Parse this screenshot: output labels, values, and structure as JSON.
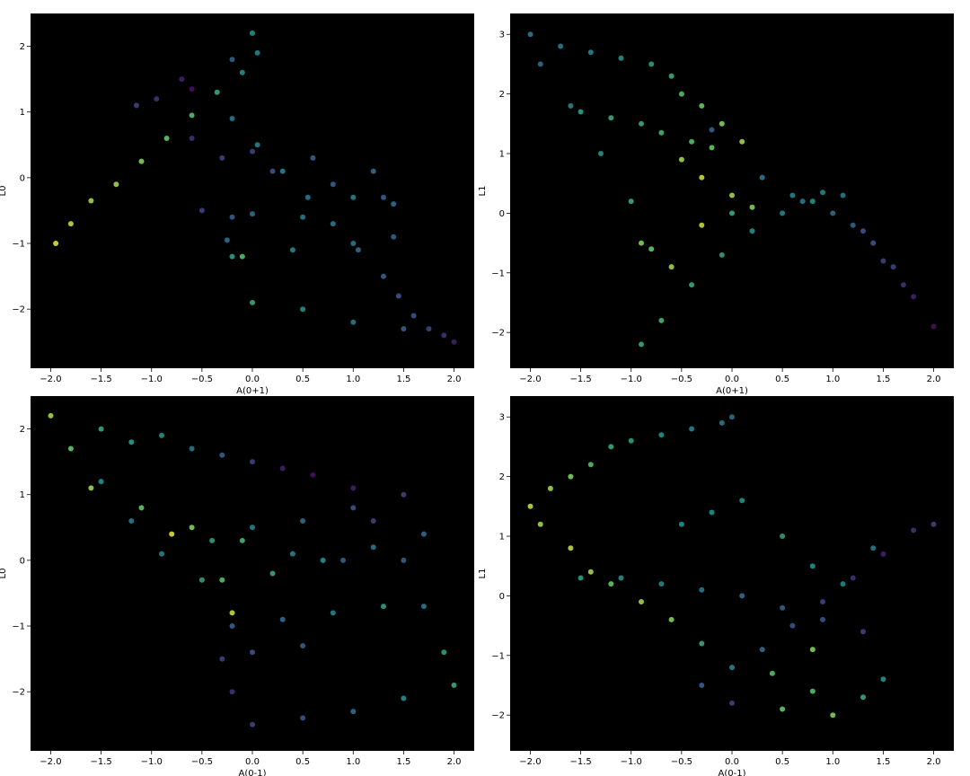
{
  "chart_data": [
    {
      "type": "scatter",
      "xlabel": "A(0+1)",
      "ylabel": "L0",
      "xlim": [
        -2.2,
        2.2
      ],
      "ylim": [
        -2.9,
        2.5
      ],
      "xticks": [
        -2.0,
        -1.5,
        -1.0,
        -0.5,
        0.0,
        0.5,
        1.0,
        1.5,
        2.0
      ],
      "xtick_labels": [
        "−2.0",
        "−1.5",
        "−1.0",
        "−0.5",
        "0.0",
        "0.5",
        "1.0",
        "1.5",
        "2.0"
      ],
      "yticks": [
        2,
        1,
        0,
        -1,
        -2
      ],
      "ytick_labels": [
        "2",
        "1",
        "0",
        "−1",
        "−2"
      ],
      "background": "#000000",
      "colormap": "viridis",
      "grid": false,
      "x": [
        -1.95,
        -1.8,
        -1.6,
        -1.35,
        -1.1,
        -0.85,
        -0.6,
        -0.35,
        -0.1,
        0.05,
        0.0,
        -0.2,
        -0.6,
        -0.7,
        -0.95,
        -1.15,
        -0.2,
        0.05,
        0.3,
        0.55,
        0.8,
        1.05,
        1.3,
        1.45,
        1.6,
        1.75,
        1.9,
        2.0,
        1.5,
        1.0,
        0.5,
        0.0,
        -0.1,
        -0.2,
        -0.25,
        -0.5,
        0.0,
        0.5,
        1.0,
        1.4,
        -0.2,
        0.4,
        1.0,
        1.4,
        -0.3,
        0.2,
        0.8,
        1.3,
        -0.6,
        0.0,
        0.6,
        1.2
      ],
      "y": [
        -1.0,
        -0.7,
        -0.35,
        -0.1,
        0.25,
        0.6,
        0.95,
        1.3,
        1.6,
        1.9,
        2.2,
        1.8,
        1.35,
        1.5,
        1.2,
        1.1,
        0.9,
        0.5,
        0.1,
        -0.3,
        -0.7,
        -1.1,
        -1.5,
        -1.8,
        -2.1,
        -2.3,
        -2.4,
        -2.5,
        -2.3,
        -2.2,
        -2.0,
        -1.9,
        -1.2,
        -0.6,
        -0.95,
        -0.5,
        -0.55,
        -0.6,
        -0.3,
        -0.4,
        -1.2,
        -1.1,
        -1.0,
        -0.9,
        0.3,
        0.1,
        -0.1,
        -0.3,
        0.6,
        0.4,
        0.3,
        0.1
      ],
      "c": [
        0.95,
        0.9,
        0.85,
        0.85,
        0.8,
        0.75,
        0.7,
        0.6,
        0.5,
        0.45,
        0.5,
        0.3,
        0.05,
        0.1,
        0.15,
        0.2,
        0.4,
        0.45,
        0.45,
        0.4,
        0.4,
        0.35,
        0.3,
        0.25,
        0.25,
        0.2,
        0.15,
        0.1,
        0.3,
        0.4,
        0.5,
        0.6,
        0.7,
        0.3,
        0.35,
        0.2,
        0.35,
        0.4,
        0.45,
        0.35,
        0.55,
        0.45,
        0.4,
        0.3,
        0.2,
        0.25,
        0.3,
        0.3,
        0.15,
        0.2,
        0.3,
        0.35
      ]
    },
    {
      "type": "scatter",
      "xlabel": "A(0+1)",
      "ylabel": "L1",
      "xlim": [
        -2.2,
        2.2
      ],
      "ylim": [
        -2.6,
        3.35
      ],
      "xticks": [
        -2.0,
        -1.5,
        -1.0,
        -0.5,
        0.0,
        0.5,
        1.0,
        1.5,
        2.0
      ],
      "xtick_labels": [
        "−2.0",
        "−1.5",
        "−1.0",
        "−0.5",
        "0.0",
        "0.5",
        "1.0",
        "1.5",
        "2.0"
      ],
      "yticks": [
        3,
        2,
        1,
        0,
        -1,
        -2
      ],
      "ytick_labels": [
        "3",
        "2",
        "1",
        "0",
        "−1",
        "−2"
      ],
      "background": "#000000",
      "colormap": "viridis",
      "grid": false,
      "x": [
        -2.0,
        -1.7,
        -1.4,
        -1.1,
        -0.8,
        -0.6,
        -0.5,
        -0.3,
        -0.1,
        0.1,
        -0.2,
        0.3,
        0.6,
        0.8,
        1.0,
        1.2,
        1.4,
        1.6,
        1.8,
        2.0,
        -0.9,
        -0.7,
        -0.4,
        -0.1,
        0.2,
        0.5,
        0.7,
        -1.9,
        -1.6,
        -1.3,
        -1.0,
        -0.8,
        -1.5,
        -1.2,
        -0.9,
        -0.7,
        -0.4,
        -0.2,
        -0.5,
        -0.3,
        0.0,
        0.2,
        -0.9,
        -0.6,
        -0.3,
        0.0,
        1.3,
        1.5,
        1.7,
        0.9,
        1.1
      ],
      "y": [
        3.0,
        2.8,
        2.7,
        2.6,
        2.5,
        2.3,
        2.0,
        1.8,
        1.5,
        1.2,
        1.4,
        0.6,
        0.3,
        0.2,
        0.0,
        -0.2,
        -0.5,
        -0.9,
        -1.4,
        -1.9,
        -2.2,
        -1.8,
        -1.2,
        -0.7,
        -0.3,
        0.0,
        0.2,
        2.5,
        1.8,
        1.0,
        0.2,
        -0.6,
        1.7,
        1.6,
        1.5,
        1.35,
        1.2,
        1.1,
        0.9,
        0.6,
        0.3,
        0.1,
        -0.5,
        -0.9,
        -0.2,
        0.0,
        -0.3,
        -0.8,
        -1.2,
        0.35,
        0.3
      ],
      "c": [
        0.4,
        0.4,
        0.45,
        0.5,
        0.55,
        0.6,
        0.7,
        0.75,
        0.8,
        0.85,
        0.3,
        0.4,
        0.45,
        0.5,
        0.35,
        0.3,
        0.25,
        0.2,
        0.1,
        0.05,
        0.6,
        0.65,
        0.6,
        0.55,
        0.5,
        0.45,
        0.4,
        0.35,
        0.45,
        0.5,
        0.6,
        0.75,
        0.55,
        0.6,
        0.6,
        0.65,
        0.7,
        0.75,
        0.85,
        0.9,
        0.85,
        0.8,
        0.8,
        0.85,
        0.9,
        0.6,
        0.25,
        0.2,
        0.15,
        0.45,
        0.4
      ]
    },
    {
      "type": "scatter",
      "xlabel": "A(0-1)",
      "ylabel": "L0",
      "xlim": [
        -2.2,
        2.2
      ],
      "ylim": [
        -2.9,
        2.5
      ],
      "xticks": [
        -2.0,
        -1.5,
        -1.0,
        -0.5,
        0.0,
        0.5,
        1.0,
        1.5,
        2.0
      ],
      "xtick_labels": [
        "−2.0",
        "−1.5",
        "−1.0",
        "−0.5",
        "0.0",
        "0.5",
        "1.0",
        "1.5",
        "2.0"
      ],
      "yticks": [
        2,
        1,
        0,
        -1,
        -2
      ],
      "ytick_labels": [
        "2",
        "1",
        "0",
        "−1",
        "−2"
      ],
      "background": "#000000",
      "colormap": "viridis",
      "grid": false,
      "x": [
        -2.0,
        -1.8,
        -1.5,
        -1.2,
        -0.9,
        -0.5,
        -0.2,
        0.3,
        0.6,
        1.0,
        1.2,
        1.5,
        1.7,
        1.9,
        2.0,
        1.5,
        1.0,
        0.5,
        0.0,
        -0.2,
        -1.5,
        -1.2,
        -0.9,
        -0.6,
        -0.3,
        0.0,
        -1.6,
        -1.1,
        -0.6,
        -0.1,
        0.4,
        0.9,
        -0.4,
        0.0,
        0.5,
        1.0,
        1.5,
        -0.3,
        0.2,
        0.7,
        1.2,
        1.7,
        -0.2,
        0.3,
        0.8,
        1.3,
        -0.3,
        0.0,
        0.5,
        -0.8
      ],
      "y": [
        2.2,
        1.7,
        1.2,
        0.6,
        0.1,
        -0.3,
        -0.8,
        1.4,
        1.3,
        1.1,
        0.6,
        0.0,
        -0.7,
        -1.4,
        -1.9,
        -2.1,
        -2.3,
        -2.4,
        -2.5,
        -2.0,
        2.0,
        1.8,
        1.9,
        1.7,
        1.6,
        1.5,
        1.1,
        0.8,
        0.5,
        0.3,
        0.1,
        0.0,
        0.3,
        0.5,
        0.6,
        0.8,
        1.0,
        -0.3,
        -0.2,
        0.0,
        0.2,
        0.4,
        -1.0,
        -0.9,
        -0.8,
        -0.7,
        -1.5,
        -1.4,
        -1.3,
        0.4
      ],
      "c": [
        0.85,
        0.75,
        0.5,
        0.4,
        0.45,
        0.55,
        0.9,
        0.1,
        0.05,
        0.1,
        0.2,
        0.3,
        0.4,
        0.55,
        0.6,
        0.5,
        0.35,
        0.25,
        0.2,
        0.15,
        0.6,
        0.55,
        0.5,
        0.4,
        0.3,
        0.2,
        0.85,
        0.75,
        0.8,
        0.65,
        0.45,
        0.3,
        0.55,
        0.45,
        0.35,
        0.25,
        0.2,
        0.7,
        0.6,
        0.5,
        0.4,
        0.35,
        0.3,
        0.35,
        0.45,
        0.55,
        0.2,
        0.25,
        0.3,
        0.95
      ]
    },
    {
      "type": "scatter",
      "xlabel": "A(0-1)",
      "ylabel": "L1",
      "xlim": [
        -2.2,
        2.2
      ],
      "ylim": [
        -2.6,
        3.35
      ],
      "xticks": [
        -2.0,
        -1.5,
        -1.0,
        -0.5,
        0.0,
        0.5,
        1.0,
        1.5,
        2.0
      ],
      "xtick_labels": [
        "−2.0",
        "−1.5",
        "−1.0",
        "−0.5",
        "0.0",
        "0.5",
        "1.0",
        "1.5",
        "2.0"
      ],
      "yticks": [
        3,
        2,
        1,
        0,
        -1,
        -2
      ],
      "ytick_labels": [
        "3",
        "2",
        "1",
        "0",
        "−1",
        "−2"
      ],
      "background": "#000000",
      "colormap": "viridis",
      "grid": false,
      "x": [
        -2.0,
        -1.8,
        -1.6,
        -1.4,
        -1.2,
        -1.0,
        -0.7,
        -0.4,
        -0.1,
        0.0,
        -1.9,
        -1.6,
        -1.4,
        -1.2,
        -0.9,
        -0.6,
        -0.3,
        0.0,
        0.3,
        0.6,
        0.9,
        1.2,
        1.5,
        1.8,
        2.0,
        -1.5,
        -1.1,
        -0.7,
        -0.3,
        0.1,
        0.5,
        0.9,
        1.3,
        -0.5,
        -0.2,
        0.1,
        0.5,
        0.8,
        1.1,
        1.4,
        -0.3,
        0.0,
        0.4,
        0.8,
        0.5,
        0.8,
        1.0,
        1.3,
        1.5
      ],
      "y": [
        1.5,
        1.8,
        2.0,
        2.2,
        2.5,
        2.6,
        2.7,
        2.8,
        2.9,
        3.0,
        1.2,
        0.8,
        0.4,
        0.2,
        -0.1,
        -0.4,
        -0.8,
        -1.2,
        -0.9,
        -0.5,
        -0.1,
        0.3,
        0.7,
        1.1,
        1.2,
        0.3,
        0.3,
        0.2,
        0.1,
        0.0,
        -0.2,
        -0.4,
        -0.6,
        1.2,
        1.4,
        1.6,
        1.0,
        0.5,
        0.2,
        0.8,
        -1.5,
        -1.8,
        -1.3,
        -0.9,
        -1.9,
        -1.6,
        -2.0,
        -1.7,
        -1.4
      ],
      "c": [
        0.9,
        0.85,
        0.8,
        0.7,
        0.6,
        0.55,
        0.5,
        0.45,
        0.4,
        0.35,
        0.85,
        0.9,
        0.85,
        0.75,
        0.85,
        0.8,
        0.6,
        0.45,
        0.35,
        0.25,
        0.2,
        0.15,
        0.1,
        0.15,
        0.2,
        0.55,
        0.5,
        0.45,
        0.4,
        0.35,
        0.3,
        0.25,
        0.2,
        0.5,
        0.5,
        0.5,
        0.55,
        0.5,
        0.45,
        0.4,
        0.3,
        0.2,
        0.7,
        0.8,
        0.75,
        0.7,
        0.8,
        0.6,
        0.5
      ]
    }
  ]
}
